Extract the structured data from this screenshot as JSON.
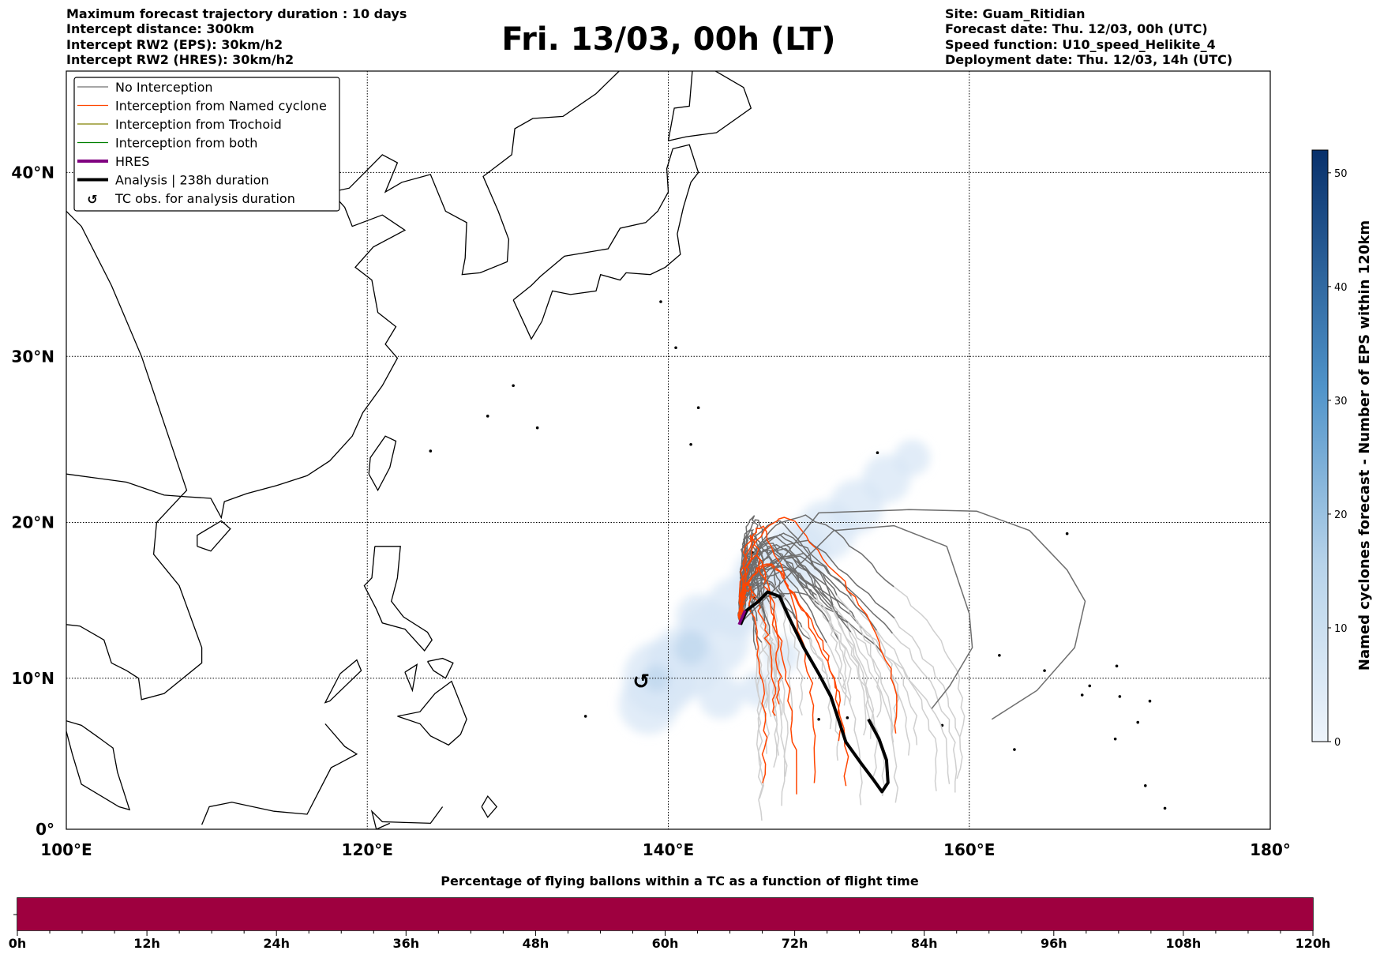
{
  "header": {
    "left": [
      "Maximum forecast trajectory duration : 10 days",
      "Intercept distance: 300km",
      "Intercept RW2 (EPS):  30km/h2",
      "Intercept RW2 (HRES): 30km/h2"
    ],
    "title": "Fri. 13/03, 00h (LT)",
    "right": [
      "Site: Guam_Ritidian",
      "Forecast date: Thu. 12/03, 00h (UTC)",
      "Speed function: U10_speed_Helikite_4",
      "Deployment date: Thu. 12/03, 14h (UTC)"
    ]
  },
  "legend": [
    {
      "label": "No Interception",
      "color": "#707070"
    },
    {
      "label": "Interception from Named cyclone",
      "color": "#ff4500"
    },
    {
      "label": "Interception from Trochoid",
      "color": "#808000"
    },
    {
      "label": "Interception from both",
      "color": "#008000"
    },
    {
      "label": "HRES",
      "color": "#800080"
    },
    {
      "label": "Analysis | 238h duration",
      "color": "#000000"
    },
    {
      "label": "TC obs. for analysis duration",
      "icon": "tc-symbol"
    }
  ],
  "map": {
    "lon_ticks": [
      {
        "v": 100,
        "label": "100°E"
      },
      {
        "v": 120,
        "label": "120°E"
      },
      {
        "v": 140,
        "label": "140°E"
      },
      {
        "v": 160,
        "label": "160°E"
      },
      {
        "v": 180,
        "label": "180°"
      }
    ],
    "lat_ticks": [
      {
        "v": 0,
        "label": "0°"
      },
      {
        "v": 10,
        "label": "10°N"
      },
      {
        "v": 20,
        "label": "20°N"
      },
      {
        "v": 30,
        "label": "30°N"
      },
      {
        "v": 40,
        "label": "40°N"
      }
    ],
    "lon_range": [
      100,
      180
    ],
    "lat_range": [
      0,
      45
    ],
    "site": {
      "lon": 144.8,
      "lat": 13.6
    },
    "tc_obs": {
      "lon": 138.2,
      "lat": 9.8
    },
    "analysis_track": [
      [
        144.8,
        13.5
      ],
      [
        145.2,
        14.4
      ],
      [
        146.0,
        15.0
      ],
      [
        146.6,
        15.6
      ],
      [
        147.4,
        15.3
      ],
      [
        148.0,
        14.0
      ],
      [
        149.0,
        12.0
      ],
      [
        150.0,
        10.3
      ],
      [
        150.8,
        8.8
      ],
      [
        151.4,
        7.0
      ],
      [
        151.8,
        5.8
      ],
      [
        152.8,
        4.4
      ],
      [
        153.7,
        3.2
      ],
      [
        154.2,
        2.5
      ],
      [
        154.6,
        3.1
      ],
      [
        154.5,
        4.6
      ],
      [
        154.0,
        6.0
      ],
      [
        153.3,
        7.3
      ]
    ]
  },
  "colorbar": {
    "label": "Named cyclones forecast - Number of EPS within 120km",
    "min": 0,
    "max": 52,
    "ticks": [
      "0",
      "10",
      "20",
      "30",
      "40",
      "50"
    ],
    "color_low": "#eef4fb",
    "color_high": "#08306b"
  },
  "bottom_bar": {
    "title": "Percentage of flying ballons within a TC as a function of flight time",
    "ticks": [
      "0h",
      "12h",
      "24h",
      "36h",
      "48h",
      "60h",
      "72h",
      "84h",
      "96h",
      "108h",
      "120h"
    ],
    "percent_in_tc": 100,
    "color": "#9e003f"
  }
}
